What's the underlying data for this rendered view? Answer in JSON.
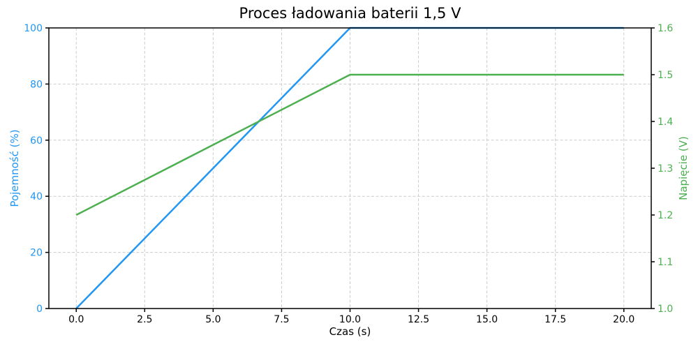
{
  "figure": {
    "background": "#ffffff",
    "grid_color": "#cccccc",
    "spine_color": "#000000",
    "title_color": "#000000",
    "xlabel_color": "#000000"
  },
  "chart_data": {
    "type": "line",
    "title": "Proces ładowania baterii 1,5 V",
    "xlabel": "Czas (s)",
    "grid": true,
    "legend": "none",
    "xlim": [
      -1,
      21
    ],
    "x_ticks": [
      0,
      2.5,
      5,
      7.5,
      10,
      12.5,
      15,
      17.5,
      20
    ],
    "x_tick_labels": [
      "0.0",
      "2.5",
      "5.0",
      "7.5",
      "10.0",
      "12.5",
      "15.0",
      "17.5",
      "20.0"
    ],
    "axes": {
      "left": {
        "label": "Pojemność (%)",
        "color": "#2196F3",
        "lim": [
          0,
          100
        ],
        "ticks": [
          0,
          20,
          40,
          60,
          80,
          100
        ],
        "tick_labels": [
          "0",
          "20",
          "40",
          "60",
          "80",
          "100"
        ]
      },
      "right": {
        "label": "Napięcie (V)",
        "color": "#4CAF50",
        "lim": [
          1.0,
          1.6
        ],
        "ticks": [
          1.0,
          1.1,
          1.2,
          1.3,
          1.4,
          1.5,
          1.6
        ],
        "tick_labels": [
          "1.0",
          "1.1",
          "1.2",
          "1.3",
          "1.4",
          "1.5",
          "1.6"
        ]
      }
    },
    "series": [
      {
        "name": "Pojemność (%)",
        "axis": "left",
        "color": "#2196F3",
        "x": [
          0,
          10,
          20
        ],
        "y": [
          0,
          100,
          100
        ]
      },
      {
        "name": "Napięcie (V)",
        "axis": "right",
        "color": "#4CAF50",
        "x": [
          0,
          10,
          20
        ],
        "y": [
          1.2,
          1.5,
          1.5
        ]
      }
    ]
  }
}
